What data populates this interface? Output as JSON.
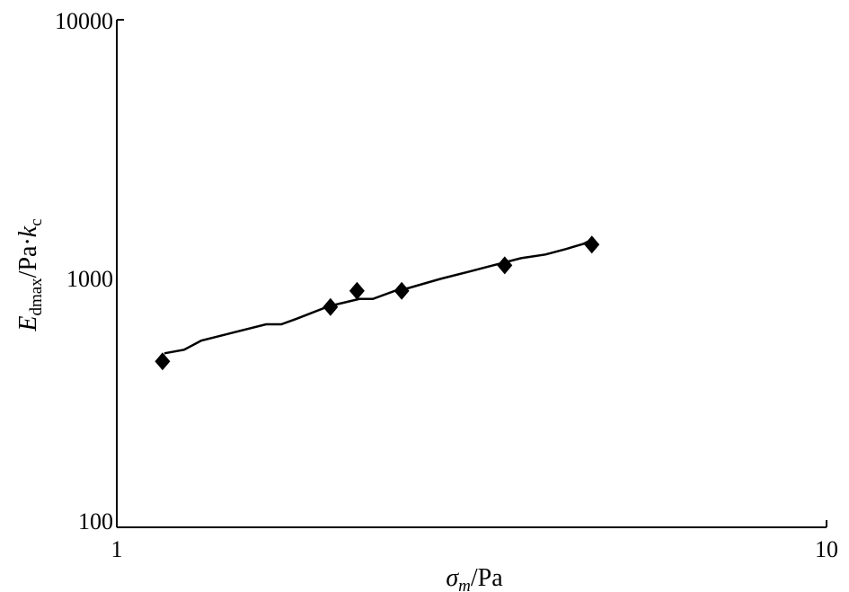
{
  "chart_data": {
    "type": "scatter",
    "xscale": "log",
    "yscale": "log",
    "xlim": [
      1,
      10
    ],
    "ylim": [
      100,
      10000
    ],
    "xticks": [
      "1",
      "10"
    ],
    "yticks": [
      "100",
      "1000",
      "10000"
    ],
    "xlabel": {
      "main": "σ",
      "sub": "m",
      "unit": "/Pa"
    },
    "ylabel": {
      "main": "E",
      "sub": "dmax",
      "unit": "/Pa·",
      "k": "k",
      "ksub": "c"
    },
    "grid": false,
    "marker_color": "#000000",
    "line_color": "#000000",
    "points": {
      "marker": "diamond",
      "x": [
        1.16,
        2.0,
        2.18,
        2.52,
        3.52,
        4.67
      ],
      "y": [
        451,
        738,
        855,
        855,
        1077,
        1301
      ]
    },
    "line": {
      "x": [
        1.167,
        1.244,
        1.315,
        1.461,
        1.623,
        1.705,
        1.791,
        1.99,
        2.197,
        2.295,
        2.466,
        2.578,
        2.856,
        3.134,
        3.35,
        3.712,
        4.017,
        4.296,
        4.55,
        4.69
      ],
      "y": [
        485,
        501,
        544,
        586,
        631,
        631,
        663,
        744,
        794,
        794,
        855,
        877,
        952,
        1017,
        1068,
        1150,
        1189,
        1249,
        1311,
        1367
      ]
    }
  }
}
